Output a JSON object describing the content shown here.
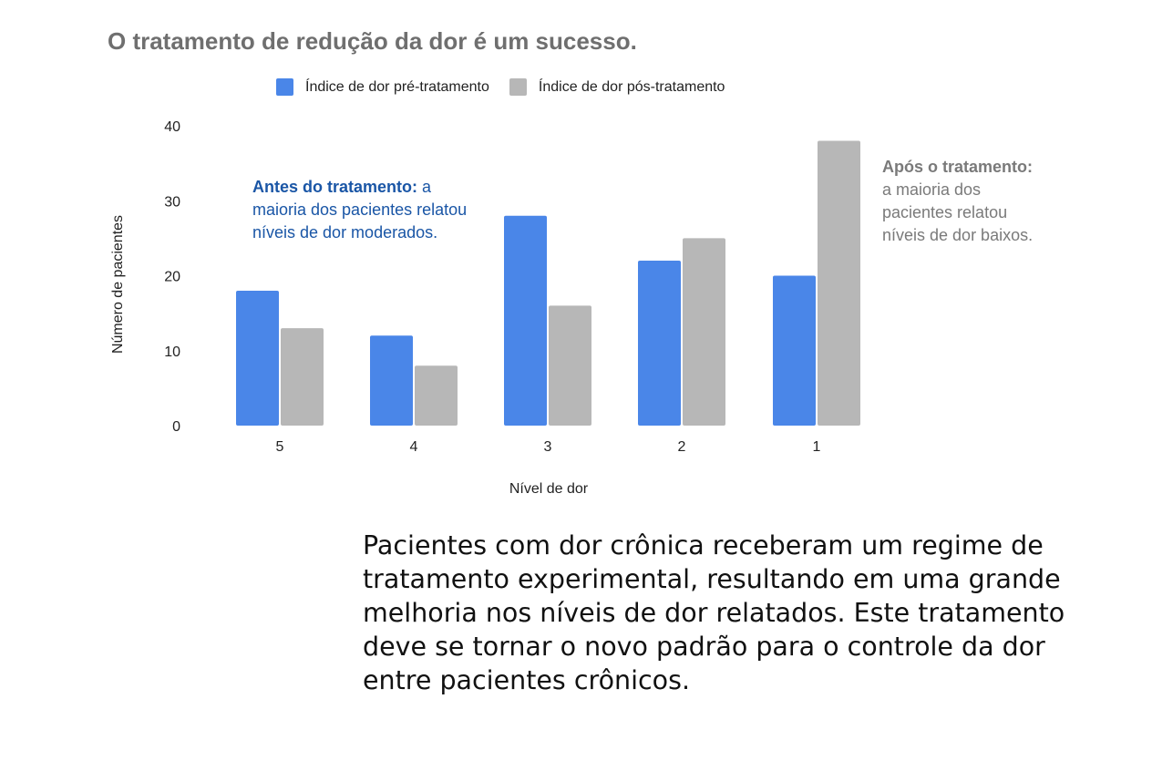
{
  "title": "O tratamento de redução da dor é um sucesso.",
  "annotations": {
    "left": {
      "heading": "Antes do tratamento:",
      "line1_tail": " a",
      "line2": "maioria dos pacientes relatou",
      "line3": "níveis de dor moderados."
    },
    "right": {
      "heading": "Após o tratamento:",
      "line2": "a maioria dos",
      "line3": "pacientes relatou",
      "line4": "níveis de dor baixos."
    }
  },
  "caption": "Pacientes com dor crônica receberam um regime de tratamento experimental, resultando em uma grande melhoria nos níveis de dor relatados. Este tratamento deve se tornar o novo padrão para o controle da dor entre pacientes crônicos.",
  "chart_data": {
    "type": "bar",
    "title": "O tratamento de redução da dor é um sucesso.",
    "xlabel": "Nível de dor",
    "ylabel": "Número de pacientes",
    "categories": [
      "5",
      "4",
      "3",
      "2",
      "1"
    ],
    "yticks": [
      "0",
      "10",
      "20",
      "30",
      "40"
    ],
    "ylim": [
      0,
      40
    ],
    "grid": false,
    "legend_position": "top",
    "series": [
      {
        "name": "Índice de dor pré-tratamento",
        "color": "#4a86e8",
        "values": [
          18,
          12,
          28,
          22,
          20
        ]
      },
      {
        "name": "Índice de dor pós-tratamento",
        "color": "#b7b7b7",
        "values": [
          13,
          8,
          16,
          25,
          38
        ]
      }
    ]
  }
}
